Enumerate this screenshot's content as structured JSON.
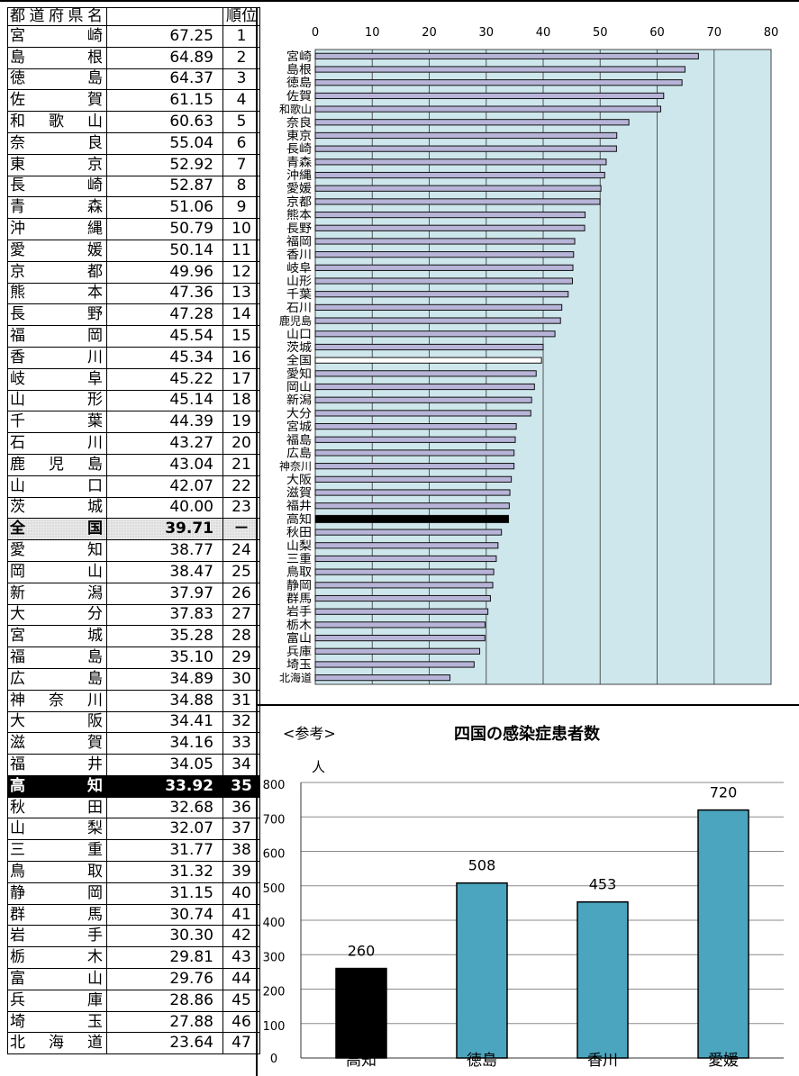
{
  "table": {
    "header_name": "都道府県名",
    "header_rank": "順位",
    "rows": [
      {
        "name": "宮崎",
        "value": "67.25",
        "rank": "1"
      },
      {
        "name": "島根",
        "value": "64.89",
        "rank": "2"
      },
      {
        "name": "徳島",
        "value": "64.37",
        "rank": "3"
      },
      {
        "name": "佐賀",
        "value": "61.15",
        "rank": "4"
      },
      {
        "name": "和歌山",
        "value": "60.63",
        "rank": "5"
      },
      {
        "name": "奈良",
        "value": "55.04",
        "rank": "6"
      },
      {
        "name": "東京",
        "value": "52.92",
        "rank": "7"
      },
      {
        "name": "長崎",
        "value": "52.87",
        "rank": "8"
      },
      {
        "name": "青森",
        "value": "51.06",
        "rank": "9"
      },
      {
        "name": "沖縄",
        "value": "50.79",
        "rank": "10"
      },
      {
        "name": "愛媛",
        "value": "50.14",
        "rank": "11"
      },
      {
        "name": "京都",
        "value": "49.96",
        "rank": "12"
      },
      {
        "name": "熊本",
        "value": "47.36",
        "rank": "13"
      },
      {
        "name": "長野",
        "value": "47.28",
        "rank": "14"
      },
      {
        "name": "福岡",
        "value": "45.54",
        "rank": "15"
      },
      {
        "name": "香川",
        "value": "45.34",
        "rank": "16"
      },
      {
        "name": "岐阜",
        "value": "45.22",
        "rank": "17"
      },
      {
        "name": "山形",
        "value": "45.14",
        "rank": "18"
      },
      {
        "name": "千葉",
        "value": "44.39",
        "rank": "19"
      },
      {
        "name": "石川",
        "value": "43.27",
        "rank": "20"
      },
      {
        "name": "鹿児島",
        "value": "43.04",
        "rank": "21"
      },
      {
        "name": "山口",
        "value": "42.07",
        "rank": "22"
      },
      {
        "name": "茨城",
        "value": "40.00",
        "rank": "23"
      },
      {
        "name": "全国",
        "value": "39.71",
        "rank": "－",
        "highlight": "national"
      },
      {
        "name": "愛知",
        "value": "38.77",
        "rank": "24"
      },
      {
        "name": "岡山",
        "value": "38.47",
        "rank": "25"
      },
      {
        "name": "新潟",
        "value": "37.97",
        "rank": "26"
      },
      {
        "name": "大分",
        "value": "37.83",
        "rank": "27"
      },
      {
        "name": "宮城",
        "value": "35.28",
        "rank": "28"
      },
      {
        "name": "福島",
        "value": "35.10",
        "rank": "29"
      },
      {
        "name": "広島",
        "value": "34.89",
        "rank": "30"
      },
      {
        "name": "神奈川",
        "value": "34.88",
        "rank": "31"
      },
      {
        "name": "大阪",
        "value": "34.41",
        "rank": "32"
      },
      {
        "name": "滋賀",
        "value": "34.16",
        "rank": "33"
      },
      {
        "name": "福井",
        "value": "34.05",
        "rank": "34"
      },
      {
        "name": "高知",
        "value": "33.92",
        "rank": "35",
        "highlight": "kochi"
      },
      {
        "name": "秋田",
        "value": "32.68",
        "rank": "36"
      },
      {
        "name": "山梨",
        "value": "32.07",
        "rank": "37"
      },
      {
        "name": "三重",
        "value": "31.77",
        "rank": "38"
      },
      {
        "name": "鳥取",
        "value": "31.32",
        "rank": "39"
      },
      {
        "name": "静岡",
        "value": "31.15",
        "rank": "40"
      },
      {
        "name": "群馬",
        "value": "30.74",
        "rank": "41"
      },
      {
        "name": "岩手",
        "value": "30.30",
        "rank": "42"
      },
      {
        "name": "栃木",
        "value": "29.81",
        "rank": "43"
      },
      {
        "name": "富山",
        "value": "29.76",
        "rank": "44"
      },
      {
        "name": "兵庫",
        "value": "28.86",
        "rank": "45"
      },
      {
        "name": "埼玉",
        "value": "27.88",
        "rank": "46"
      },
      {
        "name": "北海道",
        "value": "23.64",
        "rank": "47"
      }
    ]
  },
  "chart_data": [
    {
      "type": "bar",
      "orientation": "horizontal",
      "categories": [
        "宮崎",
        "島根",
        "徳島",
        "佐賀",
        "和歌山",
        "奈良",
        "東京",
        "長崎",
        "青森",
        "沖縄",
        "愛媛",
        "京都",
        "熊本",
        "長野",
        "福岡",
        "香川",
        "岐阜",
        "山形",
        "千葉",
        "石川",
        "鹿児島",
        "山口",
        "茨城",
        "全国",
        "愛知",
        "岡山",
        "新潟",
        "大分",
        "宮城",
        "福島",
        "広島",
        "神奈川",
        "大阪",
        "滋賀",
        "福井",
        "高知",
        "秋田",
        "山梨",
        "三重",
        "鳥取",
        "静岡",
        "群馬",
        "岩手",
        "栃木",
        "富山",
        "兵庫",
        "埼玉",
        "北海道"
      ],
      "values": [
        67.25,
        64.89,
        64.37,
        61.15,
        60.63,
        55.04,
        52.92,
        52.87,
        51.06,
        50.79,
        50.14,
        49.96,
        47.36,
        47.28,
        45.54,
        45.34,
        45.22,
        45.14,
        44.39,
        43.27,
        43.04,
        42.07,
        40.0,
        39.71,
        38.77,
        38.47,
        37.97,
        37.83,
        35.28,
        35.1,
        34.89,
        34.88,
        34.41,
        34.16,
        34.05,
        33.92,
        32.68,
        32.07,
        31.77,
        31.32,
        31.15,
        30.74,
        30.3,
        29.81,
        29.76,
        28.86,
        27.88,
        23.64
      ],
      "xlim": [
        0,
        80
      ],
      "xticks": [
        0,
        10,
        20,
        30,
        40,
        50,
        60,
        70,
        80
      ],
      "grid": true,
      "colors": {
        "plot_bg": "#cde7ec",
        "bar": "#b7b4d8",
        "national": "#ffffff",
        "kochi": "#000000"
      }
    },
    {
      "type": "bar",
      "note": "<参考>",
      "title": "四国の感染症患者数",
      "ylabel": "人",
      "categories": [
        "高知",
        "徳島",
        "香川",
        "愛媛"
      ],
      "values": [
        260,
        508,
        453,
        720
      ],
      "ylim": [
        0,
        800
      ],
      "yticks": [
        0,
        100,
        200,
        300,
        400,
        500,
        600,
        700,
        800
      ],
      "grid": true,
      "colors": {
        "bar": "#4ba5bf",
        "kochi": "#000000"
      }
    }
  ]
}
